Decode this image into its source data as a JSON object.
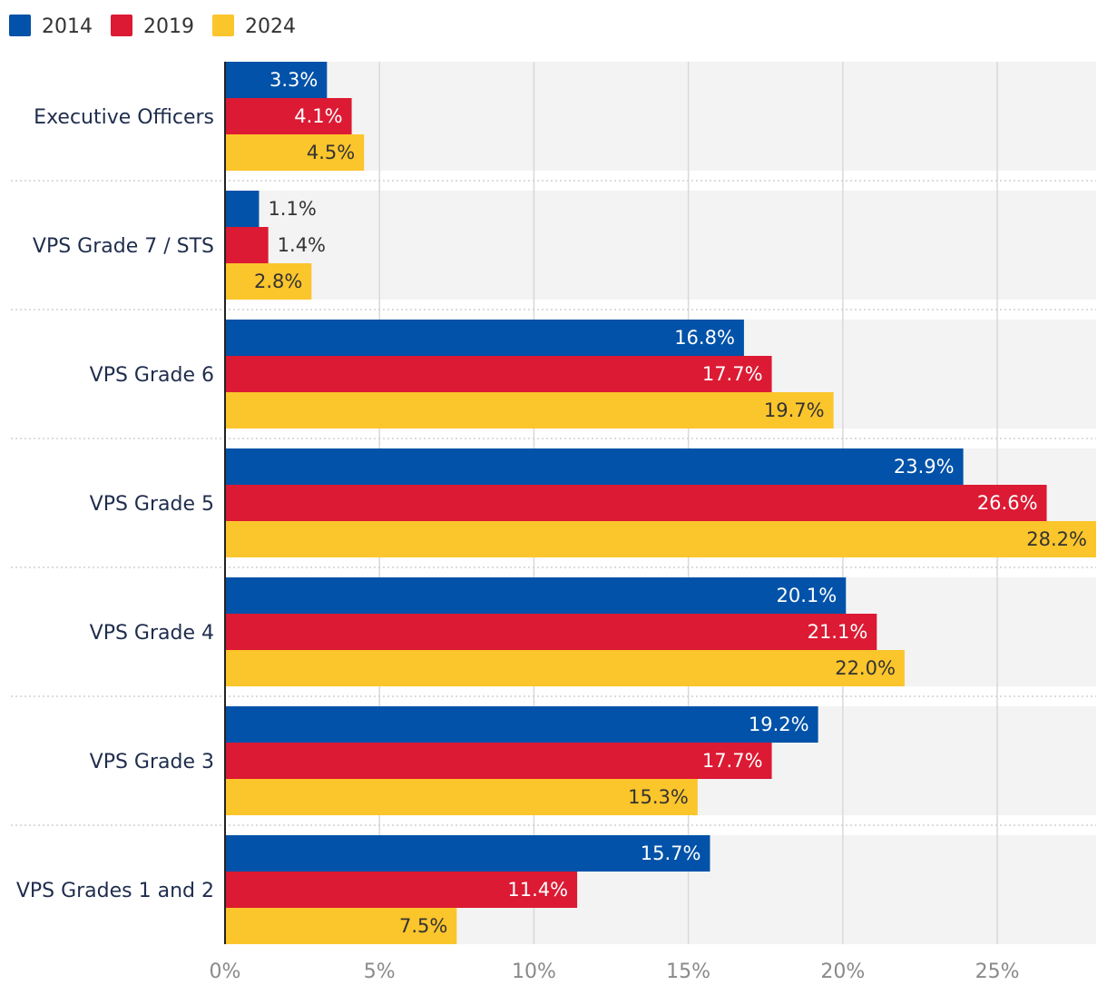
{
  "chart_data": {
    "type": "bar",
    "orientation": "horizontal",
    "categories": [
      "Executive Officers",
      "VPS Grade 7 / STS",
      "VPS Grade 6",
      "VPS Grade 5",
      "VPS Grade 4",
      "VPS Grade 3",
      "VPS Grades 1 and 2"
    ],
    "series": [
      {
        "name": "2014",
        "color": "#0152a8",
        "label_color": "#ffffff",
        "values": [
          3.3,
          1.1,
          16.8,
          23.9,
          20.1,
          19.2,
          15.7
        ],
        "labels": [
          "3.3%",
          "1.1%",
          "16.8%",
          "23.9%",
          "20.1%",
          "19.2%",
          "15.7%"
        ]
      },
      {
        "name": "2019",
        "color": "#dc1a33",
        "label_color": "#ffffff",
        "values": [
          4.1,
          1.4,
          17.7,
          26.6,
          21.1,
          17.7,
          11.4
        ],
        "labels": [
          "4.1%",
          "1.4%",
          "17.7%",
          "26.6%",
          "21.1%",
          "17.7%",
          "11.4%"
        ]
      },
      {
        "name": "2024",
        "color": "#fbc52c",
        "label_color": "#333333",
        "values": [
          4.5,
          2.8,
          19.7,
          28.2,
          22.0,
          15.3,
          7.5
        ],
        "labels": [
          "4.5%",
          "2.8%",
          "19.7%",
          "28.2%",
          "22.0%",
          "15.3%",
          "7.5%"
        ]
      }
    ],
    "x_ticks": [
      0,
      5,
      10,
      15,
      20,
      25
    ],
    "x_tick_labels": [
      "0%",
      "5%",
      "10%",
      "15%",
      "20%",
      "25%"
    ],
    "xlim": [
      0,
      28.2
    ],
    "title": "",
    "xlabel": "",
    "ylabel": "",
    "legend": "top-left",
    "grid": true
  }
}
